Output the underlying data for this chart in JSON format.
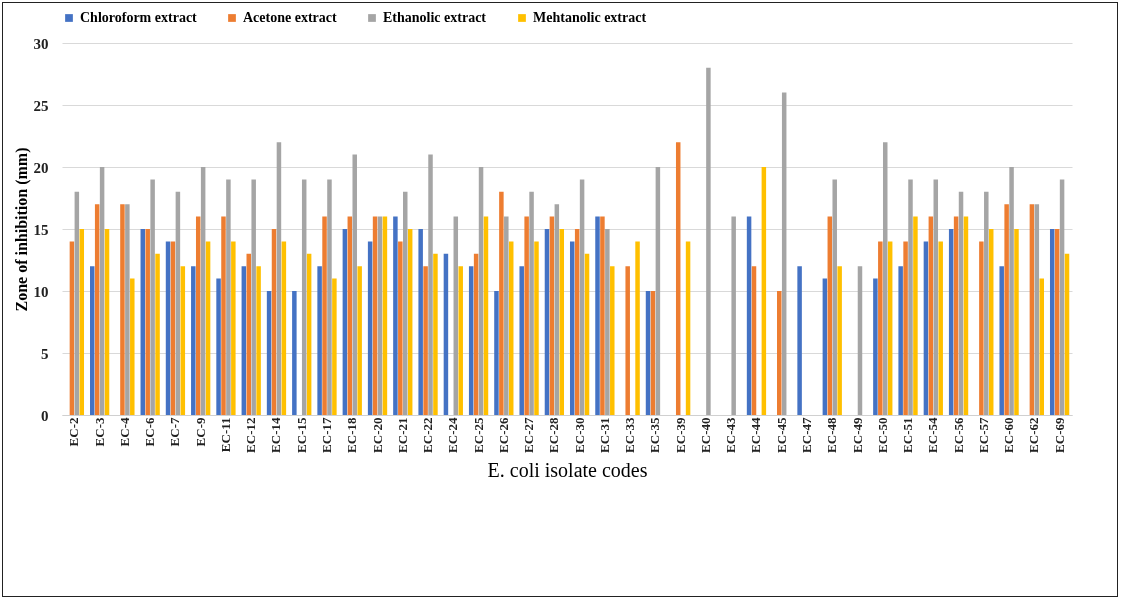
{
  "chart_data": {
    "type": "bar",
    "xlabel": "E. coli isolate codes",
    "ylabel": "Zone of inhibition  (mm)",
    "categories": [
      "EC-2",
      "EC-3",
      "EC-4",
      "EC-6",
      "EC-7",
      "EC-9",
      "EC-11",
      "EC-12",
      "EC-14",
      "EC-15",
      "EC-17",
      "EC-18",
      "EC-20",
      "EC-21",
      "EC-22",
      "EC-24",
      "EC-25",
      "EC-26",
      "EC-27",
      "EC-28",
      "EC-30",
      "EC-31",
      "EC-33",
      "EC-35",
      "EC-39",
      "EC-40",
      "EC-43",
      "EC-44",
      "EC-45",
      "EC-47",
      "EC-48",
      "EC-49",
      "EC-50",
      "EC-51",
      "EC-54",
      "EC-56",
      "EC-57",
      "EC-60",
      "EC-62",
      "EC-69"
    ],
    "series": [
      {
        "name": "Chloroform extract",
        "color": "#4472c4",
        "values": [
          null,
          12,
          null,
          15,
          14,
          12,
          11,
          12,
          10,
          10,
          12,
          15,
          14,
          16,
          15,
          13,
          12,
          10,
          12,
          15,
          14,
          16,
          null,
          10,
          null,
          null,
          null,
          16,
          null,
          12,
          11,
          null,
          11,
          12,
          14,
          15,
          null,
          12,
          null,
          15
        ]
      },
      {
        "name": "Acetone extract",
        "color": "#ed7d31",
        "values": [
          14,
          17,
          17,
          15,
          14,
          16,
          16,
          13,
          15,
          null,
          16,
          16,
          16,
          14,
          12,
          null,
          13,
          18,
          16,
          16,
          15,
          16,
          12,
          10,
          22,
          null,
          null,
          12,
          10,
          null,
          16,
          null,
          14,
          14,
          16,
          16,
          14,
          17,
          17,
          15
        ]
      },
      {
        "name": "Ethanolic extract",
        "color": "#a5a5a5",
        "values": [
          18,
          20,
          17,
          19,
          18,
          20,
          19,
          19,
          22,
          19,
          19,
          21,
          16,
          18,
          21,
          16,
          20,
          16,
          18,
          17,
          19,
          15,
          null,
          20,
          null,
          28,
          16,
          null,
          26,
          null,
          19,
          12,
          22,
          19,
          19,
          18,
          18,
          20,
          17,
          19
        ]
      },
      {
        "name": "Mehtanolic extract",
        "color": "#ffc000",
        "values": [
          15,
          15,
          11,
          13,
          12,
          14,
          14,
          12,
          14,
          13,
          11,
          12,
          16,
          15,
          13,
          12,
          16,
          14,
          14,
          15,
          13,
          12,
          14,
          null,
          14,
          null,
          null,
          20,
          null,
          null,
          12,
          null,
          14,
          16,
          14,
          16,
          15,
          15,
          11,
          13
        ]
      }
    ],
    "ylim": [
      0,
      30
    ],
    "yticks": [
      0,
      5,
      10,
      15,
      20,
      25,
      30
    ],
    "grid": "y",
    "legend": "top"
  }
}
